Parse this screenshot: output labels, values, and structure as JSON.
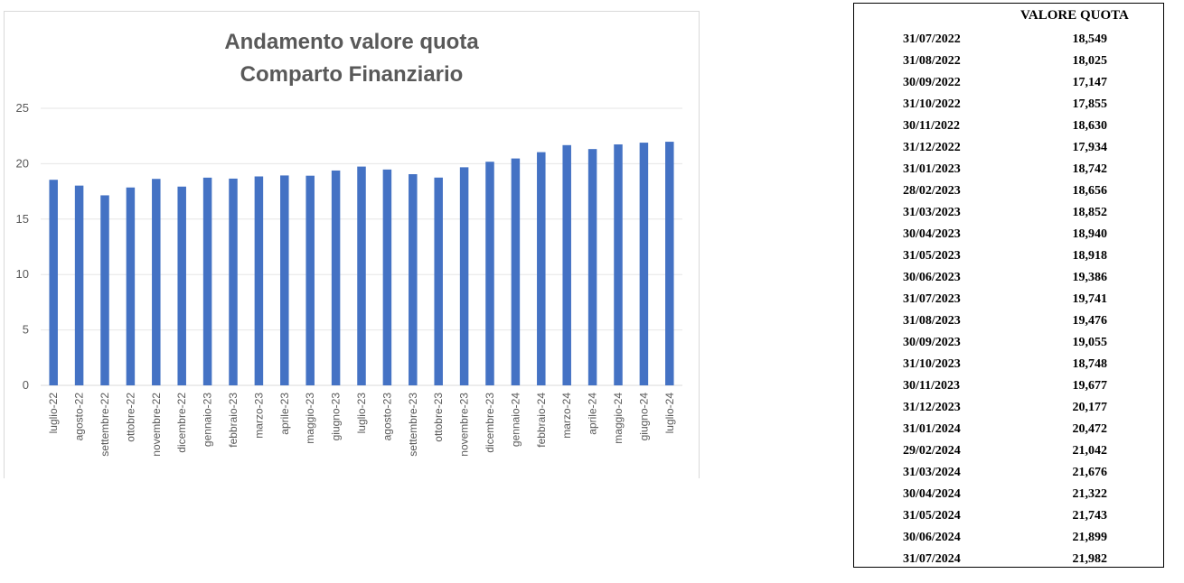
{
  "chart_data": {
    "type": "bar",
    "title_lines": [
      "Andamento valore quota",
      "Comparto Finanziario"
    ],
    "categories": [
      "luglio-22",
      "agosto-22",
      "settembre-22",
      "ottobre-22",
      "novembre-22",
      "dicembre-22",
      "gennaio-23",
      "febbraio-23",
      "marzo-23",
      "aprile-23",
      "maggio-23",
      "giugno-23",
      "luglio-23",
      "agosto-23",
      "settembre-23",
      "ottobre-23",
      "novembre-23",
      "dicembre-23",
      "gennaio-24",
      "febbraio-24",
      "marzo-24",
      "aprile-24",
      "maggio-24",
      "giugno-24",
      "luglio-24"
    ],
    "values": [
      18.549,
      18.025,
      17.147,
      17.855,
      18.63,
      17.934,
      18.742,
      18.656,
      18.852,
      18.94,
      18.918,
      19.386,
      19.741,
      19.476,
      19.055,
      18.748,
      19.677,
      20.177,
      20.472,
      21.042,
      21.676,
      21.322,
      21.743,
      21.899,
      21.982
    ],
    "ylim": [
      0,
      25
    ],
    "yticks": [
      0,
      5,
      10,
      15,
      20,
      25
    ],
    "grid": true,
    "bar_color": "#4472c4",
    "xlabel": "",
    "ylabel": ""
  },
  "table": {
    "header": "VALORE QUOTA",
    "rows": [
      {
        "date": "31/07/2022",
        "value": "18,549"
      },
      {
        "date": "31/08/2022",
        "value": "18,025"
      },
      {
        "date": "30/09/2022",
        "value": "17,147"
      },
      {
        "date": "31/10/2022",
        "value": "17,855"
      },
      {
        "date": "30/11/2022",
        "value": "18,630"
      },
      {
        "date": "31/12/2022",
        "value": "17,934"
      },
      {
        "date": "31/01/2023",
        "value": "18,742"
      },
      {
        "date": "28/02/2023",
        "value": "18,656"
      },
      {
        "date": "31/03/2023",
        "value": "18,852"
      },
      {
        "date": "30/04/2023",
        "value": "18,940"
      },
      {
        "date": "31/05/2023",
        "value": "18,918"
      },
      {
        "date": "30/06/2023",
        "value": "19,386"
      },
      {
        "date": "31/07/2023",
        "value": "19,741"
      },
      {
        "date": "31/08/2023",
        "value": "19,476"
      },
      {
        "date": "30/09/2023",
        "value": "19,055"
      },
      {
        "date": "31/10/2023",
        "value": "18,748"
      },
      {
        "date": "30/11/2023",
        "value": "19,677"
      },
      {
        "date": "31/12/2023",
        "value": "20,177"
      },
      {
        "date": "31/01/2024",
        "value": "20,472"
      },
      {
        "date": "29/02/2024",
        "value": "21,042"
      },
      {
        "date": "31/03/2024",
        "value": "21,676"
      },
      {
        "date": "30/04/2024",
        "value": "21,322"
      },
      {
        "date": "31/05/2024",
        "value": "21,743"
      },
      {
        "date": "30/06/2024",
        "value": "21,899"
      },
      {
        "date": "31/07/2024",
        "value": "21,982"
      }
    ]
  }
}
